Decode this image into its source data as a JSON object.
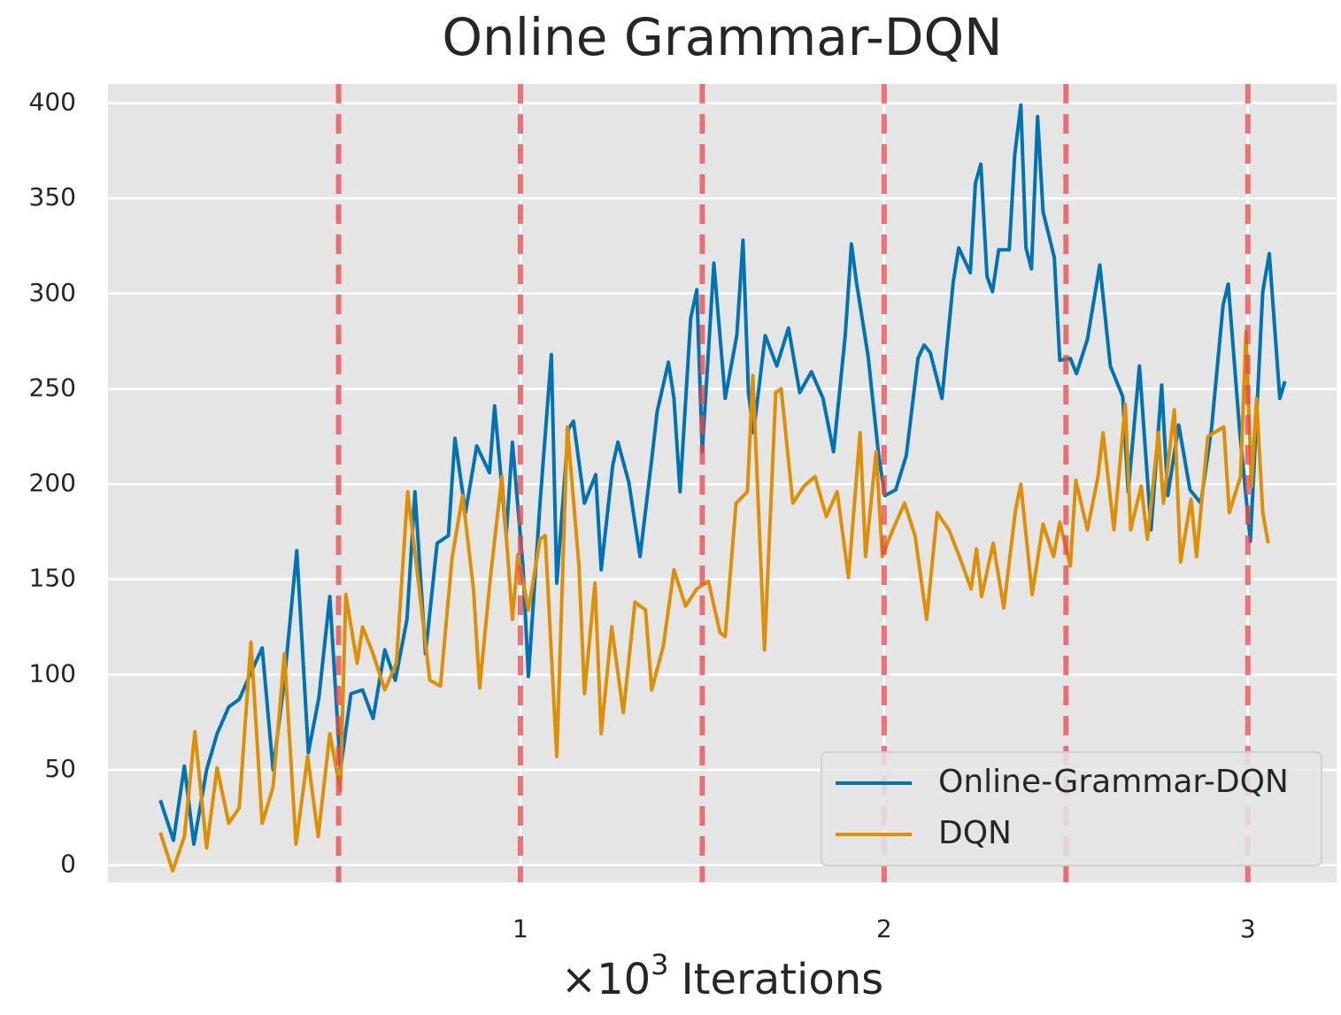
{
  "chart_data": {
    "type": "line",
    "title": "Online Grammar-DQN",
    "xlabel": {
      "prefix": "×10",
      "exponent": "3",
      "text": "Iterations"
    },
    "xlim": [
      -0.134,
      3.244
    ],
    "ylim": [
      -9,
      410
    ],
    "xticks": [
      1,
      2,
      3
    ],
    "yticks": [
      0,
      50,
      100,
      150,
      200,
      250,
      300,
      350,
      400
    ],
    "grid": true,
    "legend": "lower right",
    "vlines": [
      0.5,
      1,
      1.5,
      2,
      2.5,
      3
    ],
    "vline_color": "#e8474a",
    "series": [
      {
        "name": "Online-Grammar-DQN",
        "color": "#0173b2",
        "x": [
          0.01,
          0.046,
          0.076,
          0.102,
          0.137,
          0.166,
          0.198,
          0.227,
          0.259,
          0.29,
          0.32,
          0.351,
          0.385,
          0.417,
          0.446,
          0.476,
          0.505,
          0.534,
          0.566,
          0.595,
          0.627,
          0.656,
          0.688,
          0.71,
          0.739,
          0.771,
          0.802,
          0.82,
          0.849,
          0.88,
          0.915,
          0.929,
          0.961,
          0.978,
          1.007,
          1.022,
          1.054,
          1.085,
          1.1,
          1.132,
          1.146,
          1.176,
          1.207,
          1.222,
          1.254,
          1.268,
          1.298,
          1.329,
          1.361,
          1.376,
          1.407,
          1.422,
          1.439,
          1.468,
          1.485,
          1.5,
          1.532,
          1.563,
          1.595,
          1.612,
          1.627,
          1.641,
          1.673,
          1.705,
          1.737,
          1.768,
          1.8,
          1.832,
          1.861,
          1.893,
          1.91,
          1.924,
          1.956,
          1.985,
          2.002,
          2.032,
          2.061,
          2.093,
          2.11,
          2.127,
          2.159,
          2.19,
          2.205,
          2.237,
          2.251,
          2.266,
          2.283,
          2.298,
          2.315,
          2.344,
          2.359,
          2.376,
          2.39,
          2.405,
          2.422,
          2.437,
          2.468,
          2.483,
          2.512,
          2.529,
          2.559,
          2.593,
          2.622,
          2.656,
          2.671,
          2.702,
          2.734,
          2.763,
          2.78,
          2.81,
          2.841,
          2.871,
          2.9,
          2.932,
          2.946,
          2.978,
          3.007,
          3.041,
          3.059,
          3.088,
          3.102
        ],
        "values": [
          34,
          13,
          52,
          11,
          50,
          69,
          83,
          87,
          101,
          114,
          50,
          97,
          165,
          59,
          88,
          141,
          50,
          90,
          92,
          77,
          113,
          97,
          129,
          196,
          111,
          169,
          173,
          224,
          185,
          220,
          206,
          241,
          173,
          222,
          157,
          99,
          190,
          268,
          148,
          229,
          233,
          190,
          205,
          155,
          210,
          222,
          201,
          162,
          213,
          238,
          264,
          245,
          196,
          287,
          302,
          217,
          316,
          245,
          278,
          328,
          248,
          227,
          278,
          262,
          282,
          248,
          259,
          245,
          217,
          278,
          326,
          306,
          267,
          215,
          194,
          197,
          215,
          266,
          273,
          269,
          245,
          306,
          324,
          311,
          358,
          368,
          309,
          301,
          323,
          323,
          373,
          399,
          324,
          313,
          393,
          343,
          319,
          265,
          266,
          258,
          276,
          315,
          262,
          246,
          196,
          262,
          176,
          252,
          194,
          231,
          197,
          190,
          229,
          294,
          305,
          227,
          170,
          301,
          321,
          245,
          254
        ]
      },
      {
        "name": "DQN",
        "color": "#de8f05",
        "x": [
          0.01,
          0.044,
          0.076,
          0.105,
          0.137,
          0.166,
          0.198,
          0.227,
          0.259,
          0.29,
          0.32,
          0.351,
          0.383,
          0.415,
          0.444,
          0.476,
          0.505,
          0.52,
          0.551,
          0.566,
          0.595,
          0.627,
          0.659,
          0.69,
          0.72,
          0.751,
          0.78,
          0.812,
          0.841,
          0.871,
          0.888,
          0.917,
          0.949,
          0.978,
          0.993,
          1.022,
          1.054,
          1.068,
          1.1,
          1.129,
          1.161,
          1.176,
          1.205,
          1.222,
          1.251,
          1.283,
          1.315,
          1.344,
          1.361,
          1.393,
          1.422,
          1.454,
          1.485,
          1.517,
          1.549,
          1.563,
          1.593,
          1.624,
          1.639,
          1.671,
          1.702,
          1.717,
          1.749,
          1.78,
          1.81,
          1.841,
          1.871,
          1.902,
          1.934,
          1.949,
          1.978,
          1.995,
          2.024,
          2.056,
          2.085,
          2.117,
          2.146,
          2.178,
          2.207,
          2.239,
          2.254,
          2.268,
          2.3,
          2.329,
          2.361,
          2.376,
          2.407,
          2.437,
          2.466,
          2.483,
          2.512,
          2.527,
          2.559,
          2.588,
          2.602,
          2.632,
          2.663,
          2.678,
          2.707,
          2.724,
          2.754,
          2.768,
          2.798,
          2.815,
          2.844,
          2.859,
          2.89,
          2.934,
          2.949,
          2.98,
          2.995,
          3.01,
          3.024,
          3.041,
          3.056
        ],
        "values": [
          17,
          -3,
          15,
          70,
          9,
          51,
          22,
          30,
          117,
          22,
          41,
          111,
          11,
          57,
          15,
          69,
          39,
          142,
          106,
          125,
          111,
          92,
          106,
          196,
          148,
          97,
          94,
          161,
          194,
          145,
          93,
          150,
          204,
          129,
          163,
          134,
          171,
          173,
          57,
          230,
          157,
          90,
          148,
          69,
          125,
          80,
          138,
          134,
          92,
          115,
          155,
          136,
          145,
          149,
          122,
          120,
          190,
          196,
          257,
          113,
          248,
          250,
          190,
          199,
          204,
          183,
          196,
          151,
          227,
          162,
          217,
          162,
          176,
          190,
          173,
          129,
          185,
          176,
          162,
          145,
          166,
          141,
          169,
          135,
          186,
          200,
          142,
          179,
          162,
          180,
          157,
          202,
          176,
          204,
          227,
          176,
          242,
          176,
          199,
          171,
          227,
          190,
          239,
          159,
          192,
          162,
          225,
          230,
          185,
          204,
          280,
          199,
          245,
          185,
          169
        ]
      }
    ]
  }
}
